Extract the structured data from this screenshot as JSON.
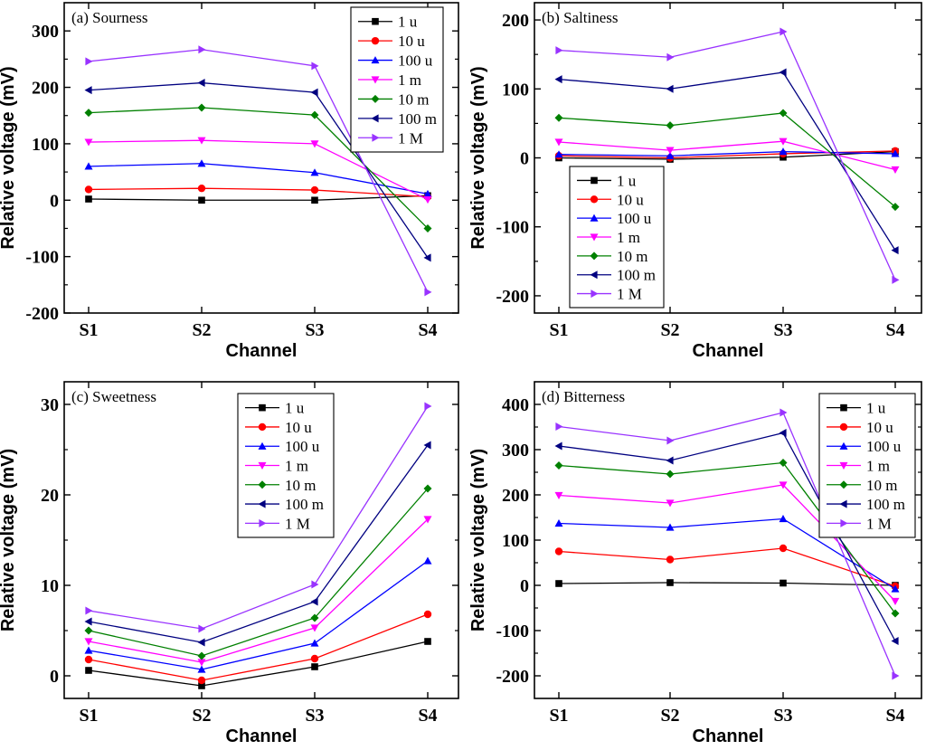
{
  "chart_data": [
    {
      "type": "line",
      "title": "(a) Sourness",
      "xlabel": "Channel",
      "ylabel": "Relative voltage (mV)",
      "categories": [
        "S1",
        "S2",
        "S3",
        "S4"
      ],
      "ylim": [
        -200,
        350
      ],
      "yticks": [
        -200,
        -100,
        0,
        100,
        200,
        300
      ],
      "legend_position": "top-right",
      "series": [
        {
          "name": "1 u",
          "values": [
            2,
            0,
            0,
            8
          ]
        },
        {
          "name": "10 u",
          "values": [
            19,
            21,
            18,
            6
          ]
        },
        {
          "name": "100 u",
          "values": [
            60,
            65,
            49,
            11
          ]
        },
        {
          "name": "1 m",
          "values": [
            103,
            106,
            100,
            1
          ]
        },
        {
          "name": "10 m",
          "values": [
            155,
            164,
            151,
            -50
          ]
        },
        {
          "name": "100 m",
          "values": [
            195,
            208,
            191,
            -102
          ]
        },
        {
          "name": "1 M",
          "values": [
            246,
            267,
            238,
            -163
          ]
        }
      ]
    },
    {
      "type": "line",
      "title": "(b) Saltiness",
      "xlabel": "Channel",
      "ylabel": "Relative voltage (mV)",
      "categories": [
        "S1",
        "S2",
        "S3",
        "S4"
      ],
      "ylim": [
        -225,
        225
      ],
      "yticks": [
        -200,
        -100,
        0,
        100,
        200
      ],
      "legend_position": "bottom-left",
      "series": [
        {
          "name": "1 u",
          "values": [
            0,
            -2,
            1,
            9
          ]
        },
        {
          "name": "10 u",
          "values": [
            3,
            0,
            6,
            10
          ]
        },
        {
          "name": "100 u",
          "values": [
            5,
            3,
            9,
            6
          ]
        },
        {
          "name": "1 m",
          "values": [
            23,
            11,
            24,
            -17
          ]
        },
        {
          "name": "10 m",
          "values": [
            58,
            47,
            65,
            -71
          ]
        },
        {
          "name": "100 m",
          "values": [
            114,
            100,
            124,
            -134
          ]
        },
        {
          "name": "1 M",
          "values": [
            156,
            146,
            183,
            -177
          ]
        }
      ]
    },
    {
      "type": "line",
      "title": "(c) Sweetness",
      "xlabel": "Channel",
      "ylabel": "Relative voltage (mV)",
      "categories": [
        "S1",
        "S2",
        "S3",
        "S4"
      ],
      "ylim": [
        -2.5,
        32.5
      ],
      "yticks": [
        0,
        10,
        20,
        30
      ],
      "legend_position": "top-left",
      "series": [
        {
          "name": "1 u",
          "values": [
            0.6,
            -1.1,
            1.0,
            3.8
          ]
        },
        {
          "name": "10 u",
          "values": [
            1.8,
            -0.5,
            1.9,
            6.8
          ]
        },
        {
          "name": "100 u",
          "values": [
            2.8,
            0.7,
            3.6,
            12.7
          ]
        },
        {
          "name": "1 m",
          "values": [
            3.8,
            1.5,
            5.3,
            17.3
          ]
        },
        {
          "name": "10 m",
          "values": [
            5.0,
            2.2,
            6.4,
            20.7
          ]
        },
        {
          "name": "100 m",
          "values": [
            6.0,
            3.7,
            8.2,
            25.5
          ]
        },
        {
          "name": "1 M",
          "values": [
            7.2,
            5.2,
            10.1,
            29.8
          ]
        }
      ]
    },
    {
      "type": "line",
      "title": "(d) Bitterness",
      "xlabel": "Channel",
      "ylabel": "Relative voltage (mV)",
      "categories": [
        "S1",
        "S2",
        "S3",
        "S4"
      ],
      "ylim": [
        -250,
        450
      ],
      "yticks": [
        -200,
        -100,
        0,
        100,
        200,
        300,
        400
      ],
      "legend_position": "top-right",
      "series": [
        {
          "name": "1 u",
          "values": [
            4,
            6,
            5,
            0
          ]
        },
        {
          "name": "10 u",
          "values": [
            75,
            57,
            82,
            -2
          ]
        },
        {
          "name": "100 u",
          "values": [
            137,
            128,
            147,
            -8
          ]
        },
        {
          "name": "1 m",
          "values": [
            199,
            182,
            222,
            -35
          ]
        },
        {
          "name": "10 m",
          "values": [
            265,
            246,
            271,
            -62
          ]
        },
        {
          "name": "100 m",
          "values": [
            308,
            276,
            337,
            -123
          ]
        },
        {
          "name": "1 M",
          "values": [
            351,
            320,
            382,
            -200
          ]
        }
      ]
    }
  ],
  "series_style": [
    {
      "color": "#000000",
      "marker": "square"
    },
    {
      "color": "#ff0000",
      "marker": "circle"
    },
    {
      "color": "#0000ff",
      "marker": "triangle-up"
    },
    {
      "color": "#ff00ff",
      "marker": "triangle-down"
    },
    {
      "color": "#008000",
      "marker": "diamond"
    },
    {
      "color": "#000080",
      "marker": "triangle-left"
    },
    {
      "color": "#9933ff",
      "marker": "triangle-right"
    }
  ]
}
